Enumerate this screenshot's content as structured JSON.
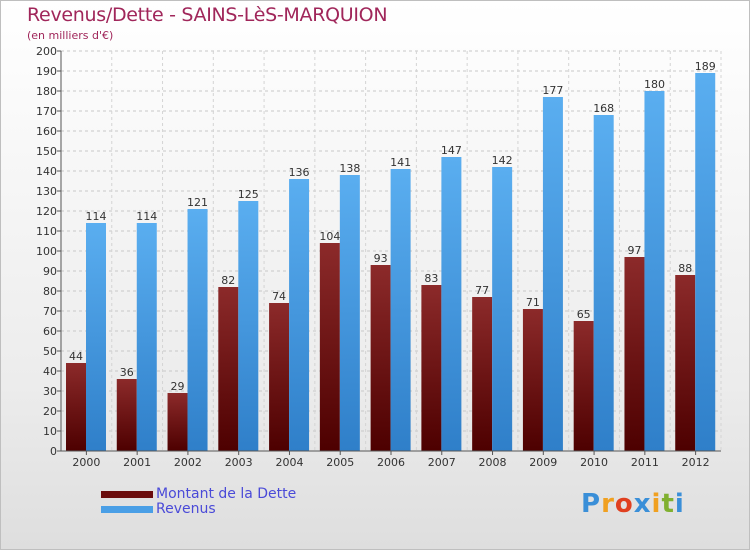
{
  "header": {
    "title": "Revenus/Dette - SAINS-LèS-MARQUION",
    "subtitle": "(en milliers d'€)"
  },
  "colors": {
    "dette_top": "#8c2a2a",
    "dette_bottom": "#4d0000",
    "revenus_top": "#5aaef0",
    "revenus_bottom": "#2f7fc9",
    "title": "#a0265a",
    "legend_text": "#4a4ad8"
  },
  "legend": [
    {
      "label": "Montant de la Dette",
      "color": "#6b0d0d"
    },
    {
      "label": "Revenus",
      "color": "#4a9fe6"
    }
  ],
  "logo": {
    "letters": [
      "P",
      "r",
      "o",
      "x",
      "i",
      "t",
      "i"
    ],
    "colors": [
      "#3a8fd8",
      "#f0a020",
      "#e04020",
      "#3a8fd8",
      "#f0a020",
      "#80b030",
      "#3a8fd8"
    ]
  },
  "chart_data": {
    "type": "bar",
    "categories": [
      "2000",
      "2001",
      "2002",
      "2003",
      "2004",
      "2005",
      "2006",
      "2007",
      "2008",
      "2009",
      "2010",
      "2011",
      "2012"
    ],
    "series": [
      {
        "name": "Montant de la Dette",
        "values": [
          44,
          36,
          29,
          82,
          74,
          104,
          93,
          83,
          77,
          71,
          65,
          97,
          88
        ]
      },
      {
        "name": "Revenus",
        "values": [
          114,
          114,
          121,
          125,
          136,
          138,
          141,
          147,
          142,
          177,
          168,
          180,
          189
        ]
      }
    ],
    "yticks": [
      0,
      10,
      20,
      30,
      40,
      50,
      60,
      70,
      80,
      90,
      100,
      110,
      120,
      130,
      140,
      150,
      160,
      170,
      180,
      190,
      200
    ],
    "ylim": [
      0,
      200
    ],
    "grid": true,
    "legend_position": "bottom-left"
  }
}
